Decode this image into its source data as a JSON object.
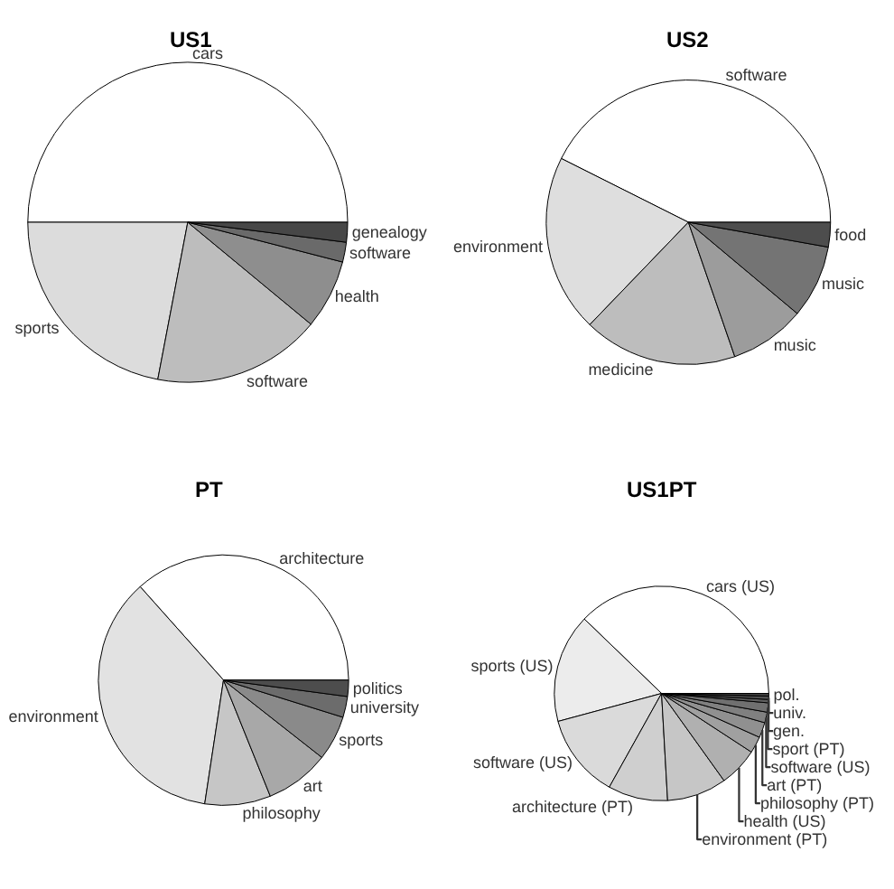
{
  "chart_data": [
    {
      "type": "pie",
      "title": "US1",
      "categories": [
        "cars",
        "sports",
        "software",
        "health",
        "software",
        "genealogy"
      ],
      "values": [
        50,
        22,
        17,
        7,
        2,
        2
      ],
      "colors": [
        "#ffffff",
        "#dcdcdc",
        "#bdbdbd",
        "#8e8e8e",
        "#6a6a6a",
        "#474747"
      ]
    },
    {
      "type": "pie",
      "title": "US2",
      "categories": [
        "software",
        "environment",
        "medicine",
        "music",
        "music",
        "food"
      ],
      "values": [
        42.6,
        20.2,
        17.5,
        8.6,
        8.3,
        2.8
      ],
      "colors": [
        "#ffffff",
        "#dedede",
        "#bdbdbd",
        "#9c9c9c",
        "#747474",
        "#4d4d4d"
      ]
    },
    {
      "type": "pie",
      "title": "PT",
      "categories": [
        "architecture",
        "environment",
        "philosophy",
        "art",
        "sports",
        "university",
        "politics"
      ],
      "values": [
        36.6,
        36,
        8.5,
        8.3,
        5.8,
        2.7,
        2.1
      ],
      "colors": [
        "#ffffff",
        "#e2e2e2",
        "#c6c6c6",
        "#a8a8a8",
        "#8a8a8a",
        "#6c6c6c",
        "#4d4d4d"
      ]
    },
    {
      "type": "pie",
      "title": "US1PT",
      "categories": [
        "cars (US)",
        "sports (US)",
        "software (US)",
        "architecture (PT)",
        "environment (PT)",
        "health (US)",
        "philosophy (PT)",
        "art (PT)",
        "software (US)",
        "sport (PT)",
        "gen.",
        "univ.",
        "pol."
      ],
      "values": [
        37.8,
        16.4,
        12.7,
        9,
        9,
        5.9,
        2.5,
        2.3,
        1.6,
        1.4,
        0.5,
        0.5,
        0.4
      ],
      "colors": [
        "#ffffff",
        "#ececec",
        "#dadada",
        "#cfcfcf",
        "#c6c6c6",
        "#b0b0b0",
        "#a0a0a0",
        "#909090",
        "#808080",
        "#707070",
        "#606060",
        "#505050",
        "#404040"
      ]
    }
  ]
}
